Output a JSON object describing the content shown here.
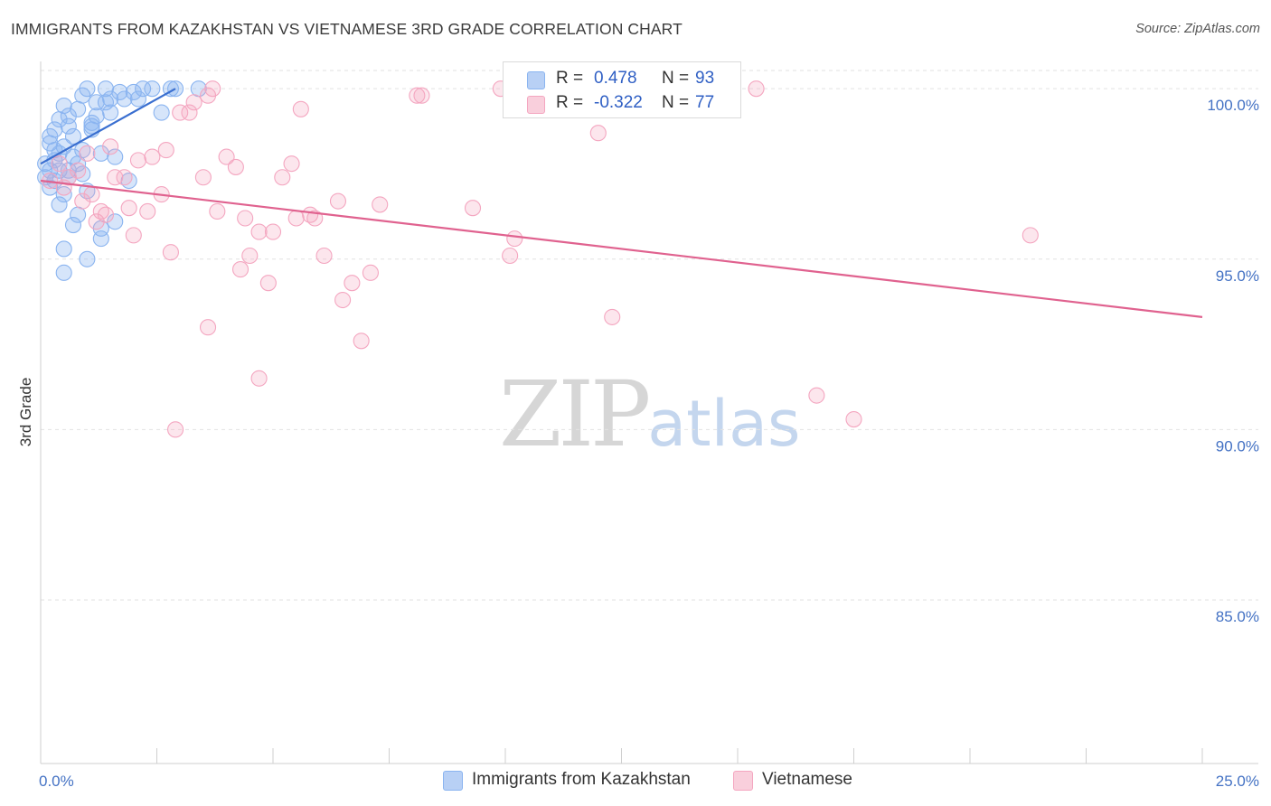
{
  "title": "IMMIGRANTS FROM KAZAKHSTAN VS VIETNAMESE 3RD GRADE CORRELATION CHART",
  "source": "Source: ZipAtlas.com",
  "watermark": {
    "zip": "ZIP",
    "atlas": "atlas"
  },
  "legend_top": {
    "rows": [
      {
        "r_label": "R =",
        "r_value": "0.478",
        "n_label": "N =",
        "n_value": "93"
      },
      {
        "r_label": "R =",
        "r_value": "-0.322",
        "n_label": "N =",
        "n_value": "77"
      }
    ]
  },
  "legend_bottom": {
    "items": [
      {
        "label": "Immigrants from Kazakhstan"
      },
      {
        "label": "Vietnamese"
      }
    ]
  },
  "chart_data": {
    "type": "scatter",
    "title": "IMMIGRANTS FROM KAZAKHSTAN VS VIETNAMESE 3RD GRADE CORRELATION CHART",
    "xlabel": "",
    "ylabel": "3rd Grade",
    "xlim": [
      0,
      25
    ],
    "ylim": [
      80.2,
      100.8
    ],
    "x_tick_labels": [
      "0.0%",
      "25.0%"
    ],
    "y_ticks": [
      85,
      90,
      95,
      100
    ],
    "y_tick_labels": [
      "85.0%",
      "90.0%",
      "95.0%",
      "100.0%"
    ],
    "grid": true,
    "legend_position": "top-center",
    "series": [
      {
        "name": "Immigrants from Kazakhstan",
        "color": "#8ab4f0",
        "line_color": "#3a6fd0",
        "r": 0.478,
        "n": 93,
        "trend": {
          "x": [
            0.0,
            2.9
          ],
          "y": [
            97.8,
            100.0
          ]
        },
        "points": [
          [
            0.2,
            98.4
          ],
          [
            0.3,
            98.2
          ],
          [
            0.1,
            97.4
          ],
          [
            0.4,
            99.1
          ],
          [
            0.5,
            99.5
          ],
          [
            0.6,
            98.9
          ],
          [
            0.3,
            97.9
          ],
          [
            0.8,
            99.4
          ],
          [
            0.9,
            99.8
          ],
          [
            1.0,
            100.0
          ],
          [
            1.2,
            99.6
          ],
          [
            1.4,
            100.0
          ],
          [
            1.5,
            99.7
          ],
          [
            1.7,
            99.9
          ],
          [
            2.2,
            100.0
          ],
          [
            2.8,
            100.0
          ],
          [
            2.9,
            100.0
          ],
          [
            3.4,
            100.0
          ],
          [
            1.1,
            98.9
          ],
          [
            0.7,
            98.6
          ],
          [
            0.6,
            97.6
          ],
          [
            0.9,
            97.5
          ],
          [
            1.3,
            98.1
          ],
          [
            1.6,
            98.0
          ],
          [
            1.9,
            97.3
          ],
          [
            0.5,
            96.9
          ],
          [
            0.8,
            96.3
          ],
          [
            1.3,
            95.9
          ],
          [
            1.0,
            95.0
          ],
          [
            0.5,
            95.3
          ],
          [
            0.5,
            94.6
          ],
          [
            0.7,
            96.0
          ],
          [
            0.4,
            97.6
          ],
          [
            0.2,
            97.1
          ],
          [
            0.3,
            98.8
          ],
          [
            0.6,
            99.2
          ],
          [
            1.1,
            99.0
          ],
          [
            1.4,
            99.6
          ],
          [
            2.6,
            99.3
          ],
          [
            1.8,
            99.7
          ],
          [
            0.1,
            97.8
          ],
          [
            0.2,
            98.6
          ],
          [
            0.4,
            98.1
          ],
          [
            0.3,
            97.3
          ],
          [
            0.9,
            98.2
          ],
          [
            1.1,
            98.8
          ],
          [
            1.5,
            99.3
          ],
          [
            2.0,
            99.9
          ],
          [
            2.4,
            100.0
          ],
          [
            1.2,
            99.2
          ],
          [
            0.7,
            98.0
          ],
          [
            0.5,
            98.3
          ],
          [
            0.8,
            97.8
          ],
          [
            0.4,
            96.6
          ],
          [
            0.6,
            97.4
          ],
          [
            1.0,
            97.0
          ],
          [
            1.6,
            96.1
          ],
          [
            1.3,
            95.6
          ],
          [
            2.1,
            99.7
          ],
          [
            0.2,
            97.6
          ]
        ]
      },
      {
        "name": "Vietnamese",
        "color": "#f4a6c0",
        "line_color": "#e0628f",
        "r": -0.322,
        "n": 77,
        "trend": {
          "x": [
            0.0,
            25.0
          ],
          "y": [
            97.3,
            93.3
          ]
        },
        "points": [
          [
            0.2,
            97.3
          ],
          [
            0.5,
            97.1
          ],
          [
            0.8,
            97.6
          ],
          [
            1.1,
            96.9
          ],
          [
            1.3,
            96.4
          ],
          [
            1.6,
            97.4
          ],
          [
            1.9,
            96.5
          ],
          [
            2.1,
            97.9
          ],
          [
            2.3,
            96.4
          ],
          [
            2.6,
            96.9
          ],
          [
            2.7,
            98.2
          ],
          [
            3.0,
            99.3
          ],
          [
            3.3,
            99.6
          ],
          [
            3.6,
            99.8
          ],
          [
            3.8,
            96.4
          ],
          [
            4.0,
            98.0
          ],
          [
            4.2,
            97.7
          ],
          [
            4.4,
            96.2
          ],
          [
            4.5,
            95.1
          ],
          [
            4.7,
            95.8
          ],
          [
            4.9,
            94.3
          ],
          [
            5.0,
            95.8
          ],
          [
            5.2,
            97.4
          ],
          [
            5.4,
            97.8
          ],
          [
            5.6,
            99.4
          ],
          [
            5.9,
            96.2
          ],
          [
            6.1,
            95.1
          ],
          [
            6.4,
            96.7
          ],
          [
            6.5,
            93.8
          ],
          [
            6.7,
            94.3
          ],
          [
            6.9,
            92.6
          ],
          [
            7.1,
            94.6
          ],
          [
            7.3,
            96.6
          ],
          [
            8.1,
            99.8
          ],
          [
            8.2,
            99.8
          ],
          [
            9.3,
            96.5
          ],
          [
            9.9,
            100.0
          ],
          [
            10.1,
            95.1
          ],
          [
            10.2,
            95.6
          ],
          [
            12.0,
            98.7
          ],
          [
            12.3,
            93.3
          ],
          [
            15.4,
            100.0
          ],
          [
            16.7,
            91.0
          ],
          [
            17.5,
            90.3
          ],
          [
            21.3,
            95.7
          ],
          [
            2.9,
            90.0
          ],
          [
            4.7,
            91.5
          ],
          [
            3.5,
            97.4
          ],
          [
            2.0,
            95.7
          ],
          [
            1.2,
            96.1
          ],
          [
            0.9,
            96.7
          ],
          [
            0.4,
            97.8
          ],
          [
            1.5,
            98.3
          ],
          [
            1.8,
            97.4
          ],
          [
            2.4,
            98.0
          ],
          [
            3.2,
            99.3
          ],
          [
            3.7,
            100.0
          ],
          [
            5.5,
            96.2
          ],
          [
            5.8,
            96.3
          ],
          [
            4.3,
            94.7
          ],
          [
            2.8,
            95.2
          ],
          [
            3.6,
            93.0
          ],
          [
            0.6,
            97.4
          ],
          [
            1.0,
            98.1
          ],
          [
            1.4,
            96.3
          ]
        ]
      }
    ]
  }
}
